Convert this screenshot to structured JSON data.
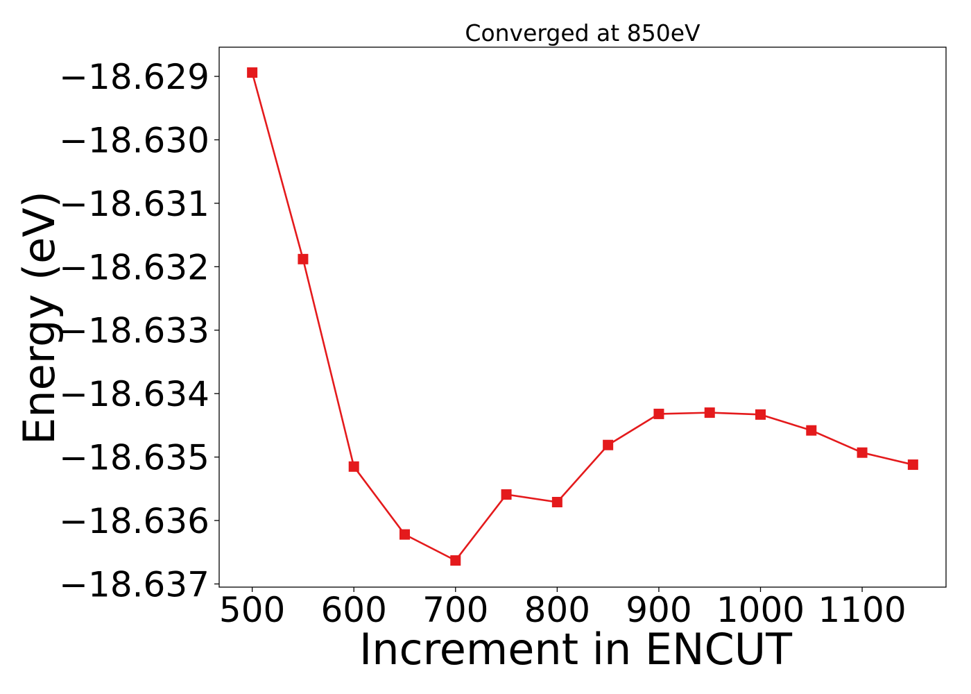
{
  "chart_data": {
    "type": "line",
    "title": "Converged at 850eV",
    "xlabel": "Increment in ENCUT",
    "ylabel": "Energy (eV)",
    "xlim": [
      467.5,
      1182.5
    ],
    "ylim": [
      -18.63705,
      -18.62854
    ],
    "xticks": [
      500,
      600,
      700,
      800,
      900,
      1000,
      1100
    ],
    "xtick_labels": [
      "500",
      "600",
      "700",
      "800",
      "900",
      "1000",
      "1100"
    ],
    "yticks": [
      -18.629,
      -18.63,
      -18.631,
      -18.632,
      -18.633,
      -18.634,
      -18.635,
      -18.636,
      -18.637
    ],
    "ytick_labels": [
      "−18.629",
      "−18.630",
      "−18.631",
      "−18.632",
      "−18.633",
      "−18.634",
      "−18.635",
      "−18.636",
      "−18.637"
    ],
    "grid": false,
    "series": [
      {
        "color": "#e41a1c",
        "marker": "square",
        "x": [
          500,
          550,
          600,
          650,
          700,
          750,
          800,
          850,
          900,
          950,
          1000,
          1050,
          1100,
          1150
        ],
        "y": [
          -18.62894,
          -18.63188,
          -18.63515,
          -18.63622,
          -18.63663,
          -18.63559,
          -18.63571,
          -18.63481,
          -18.63432,
          -18.6343,
          -18.63433,
          -18.63458,
          -18.63493,
          -18.63512
        ]
      }
    ]
  }
}
